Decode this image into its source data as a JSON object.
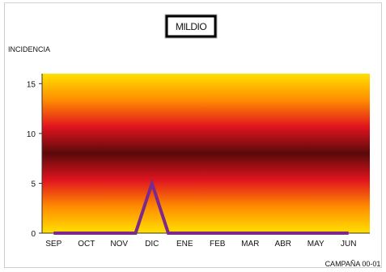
{
  "chart_data": {
    "type": "line",
    "title": "MILDIO",
    "ylabel": "INCIDENCIA",
    "xlabel": "CAMPAÑA 00-01",
    "categories": [
      "SEP",
      "OCT",
      "NOV",
      "DIC",
      "ENE",
      "FEB",
      "MAR",
      "ABR",
      "MAY",
      "JUN"
    ],
    "ylim": [
      0,
      16
    ],
    "yticks": [
      0,
      5,
      10,
      15
    ],
    "grid": false,
    "series": [
      {
        "x": [
          "SEP",
          "OCT",
          "NOV",
          "NOV-DIC",
          "DIC",
          "DIC-ENE",
          "ENE",
          "FEB",
          "MAR",
          "ABR",
          "MAY",
          "JUN"
        ],
        "values": [
          0,
          0,
          0,
          0,
          5,
          0,
          0,
          0,
          0,
          0,
          0,
          0
        ]
      }
    ],
    "line_color": "#7b2a8c",
    "background_gradient": [
      "#ffe000",
      "#ff8c00",
      "#e0141e",
      "#5a0a0a",
      "#e0141e",
      "#ff8c00",
      "#ffe000"
    ]
  }
}
